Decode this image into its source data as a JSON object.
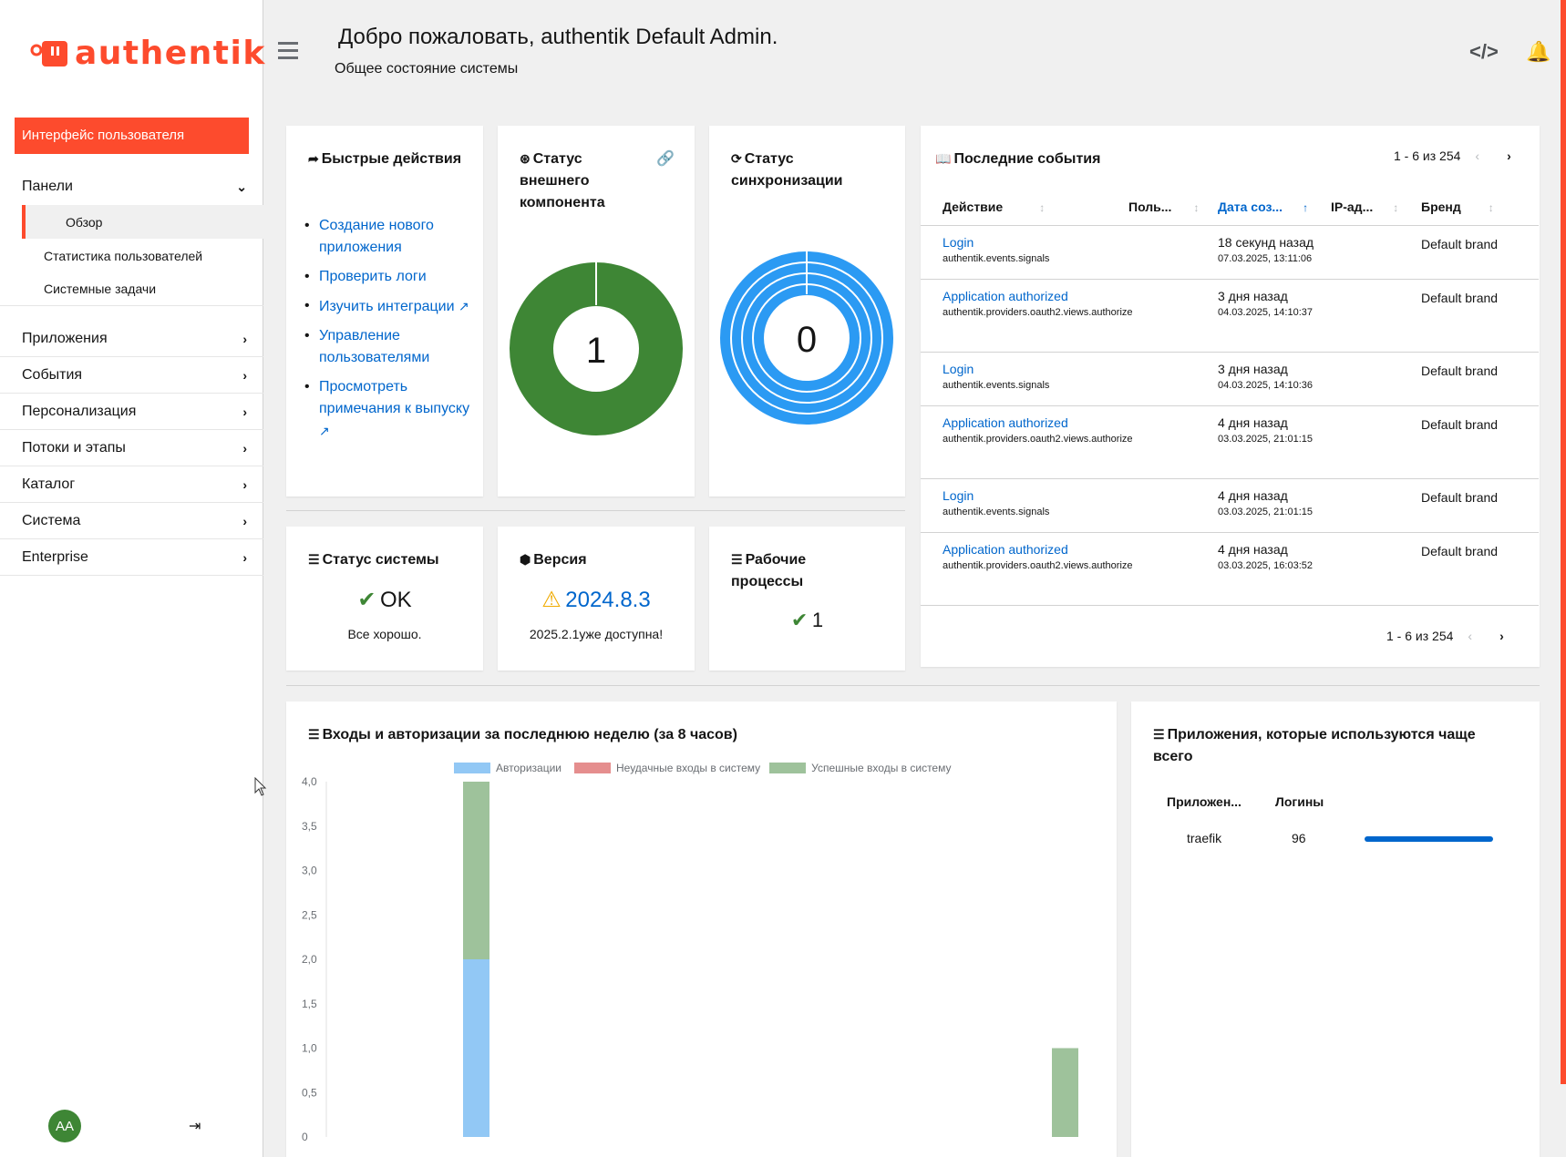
{
  "app": {
    "logo_text": "authentik"
  },
  "sidebar": {
    "user_interface": "Интерфейс пользователя",
    "panels": "Панели",
    "sub_items": [
      "Обзор",
      "Статистика пользователей",
      "Системные задачи"
    ],
    "items": [
      "Приложения",
      "События",
      "Персонализация",
      "Потоки и этапы",
      "Каталог",
      "Система",
      "Enterprise"
    ],
    "avatar_initials": "AA"
  },
  "header": {
    "title": "Добро пожаловать, authentik Default Admin.",
    "subtitle": "Общее состояние системы"
  },
  "quick_actions": {
    "title": "Быстрые действия",
    "links": [
      "Создание нового приложения",
      "Проверить логи",
      "Изучить интеграции",
      "Управление пользователями",
      "Просмотреть примечания к выпуску"
    ]
  },
  "outpost": {
    "title": "Статус внешнего компонента",
    "value": "1"
  },
  "sync": {
    "title": "Статус синхронизации",
    "value": "0"
  },
  "events": {
    "title": "Последние события",
    "pager": "1 - 6 из 254",
    "columns": [
      "Действие",
      "Поль...",
      "Дата соз...",
      "IP-ад...",
      "Бренд"
    ],
    "rows": [
      {
        "action": "Login",
        "source": "authentik.events.signals",
        "when": "18 секунд назад",
        "date": "07.03.2025, 13:11:06",
        "brand": "Default brand"
      },
      {
        "action": "Application authorized",
        "source": "authentik.providers.oauth2.views.authorize",
        "when": "3 дня назад",
        "date": "04.03.2025, 14:10:37",
        "brand": "Default brand"
      },
      {
        "action": "Login",
        "source": "authentik.events.signals",
        "when": "3 дня назад",
        "date": "04.03.2025, 14:10:36",
        "brand": "Default brand"
      },
      {
        "action": "Application authorized",
        "source": "authentik.providers.oauth2.views.authorize",
        "when": "4 дня назад",
        "date": "03.03.2025, 21:01:15",
        "brand": "Default brand"
      },
      {
        "action": "Login",
        "source": "authentik.events.signals",
        "when": "4 дня назад",
        "date": "03.03.2025, 21:01:15",
        "brand": "Default brand"
      },
      {
        "action": "Application authorized",
        "source": "authentik.providers.oauth2.views.authorize",
        "when": "4 дня назад",
        "date": "03.03.2025, 16:03:52",
        "brand": "Default brand"
      }
    ]
  },
  "system_status": {
    "title": "Статус системы",
    "value": "OK",
    "note": "Все хорошо."
  },
  "version": {
    "title": "Версия",
    "value": "2024.8.3",
    "note": "2025.2.1уже доступна!"
  },
  "workers": {
    "title": "Рабочие процессы",
    "value": "1"
  },
  "logins_chart": {
    "title": "Входы и авторизации за последнюю неделю (за 8 часов)"
  },
  "chart_data": {
    "type": "bar",
    "series": [
      {
        "name": "Авторизации",
        "color": "#92c8f5",
        "values": [
          2,
          0
        ]
      },
      {
        "name": "Неудачные входы в систему",
        "color": "#e58e8e",
        "values": [
          0,
          0
        ]
      },
      {
        "name": "Успешные входы в систему",
        "color": "#9ec29b",
        "values": [
          2,
          1
        ]
      }
    ],
    "yticks": [
      "4,0",
      "3,5",
      "3,0",
      "2,5",
      "2,0",
      "1,5",
      "1,0",
      "0,5",
      "0"
    ],
    "ylim": [
      0,
      4
    ]
  },
  "top_apps": {
    "title": "Приложения, которые используются чаще всего",
    "col_app": "Приложен...",
    "col_logins": "Логины",
    "rows": [
      {
        "name": "traefik",
        "logins": "96"
      }
    ]
  }
}
